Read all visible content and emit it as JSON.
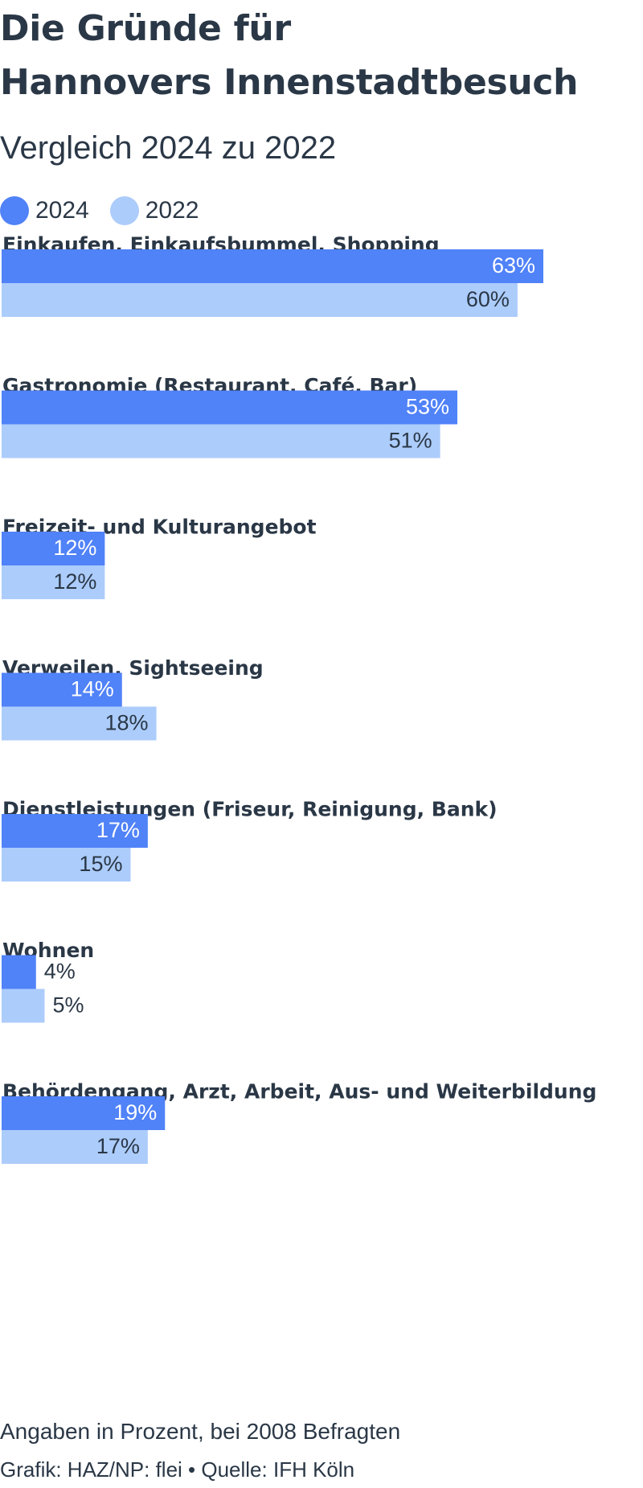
{
  "title_line1": "Die Gründe für",
  "title_line2": "Hannovers Innenstadtbesuch",
  "subtitle": "Vergleich 2024 zu 2022",
  "footer_note": "Angaben in Prozent, bei 2008 Befragten",
  "footer_credit": "Grafik: HAZ/NP: flei • Quelle: IFH Köln",
  "colors": {
    "series_2024": "#5082f8",
    "series_2022": "#acccfb",
    "label_inside_2024": "#ffffff",
    "label_default": "#2a3746"
  },
  "chart_data": {
    "type": "bar",
    "orientation": "horizontal",
    "unit": "%",
    "categories": [
      "Einkaufen, Einkaufsbummel, Shopping",
      "Gastronomie (Restaurant, Café, Bar)",
      "Freizeit- und Kulturangebot",
      "Verweilen, Sightseeing",
      "Dienstleistungen (Friseur, Reinigung, Bank)",
      "Wohnen",
      "Behördengang, Arzt, Arbeit, Aus- und Weiterbildung"
    ],
    "series": [
      {
        "name": "2024",
        "values": [
          63,
          53,
          12,
          14,
          17,
          4,
          19
        ]
      },
      {
        "name": "2022",
        "values": [
          60,
          51,
          12,
          18,
          15,
          5,
          17
        ]
      }
    ],
    "xlim": [
      0,
      63
    ],
    "legend": "top-left",
    "grid": false
  }
}
